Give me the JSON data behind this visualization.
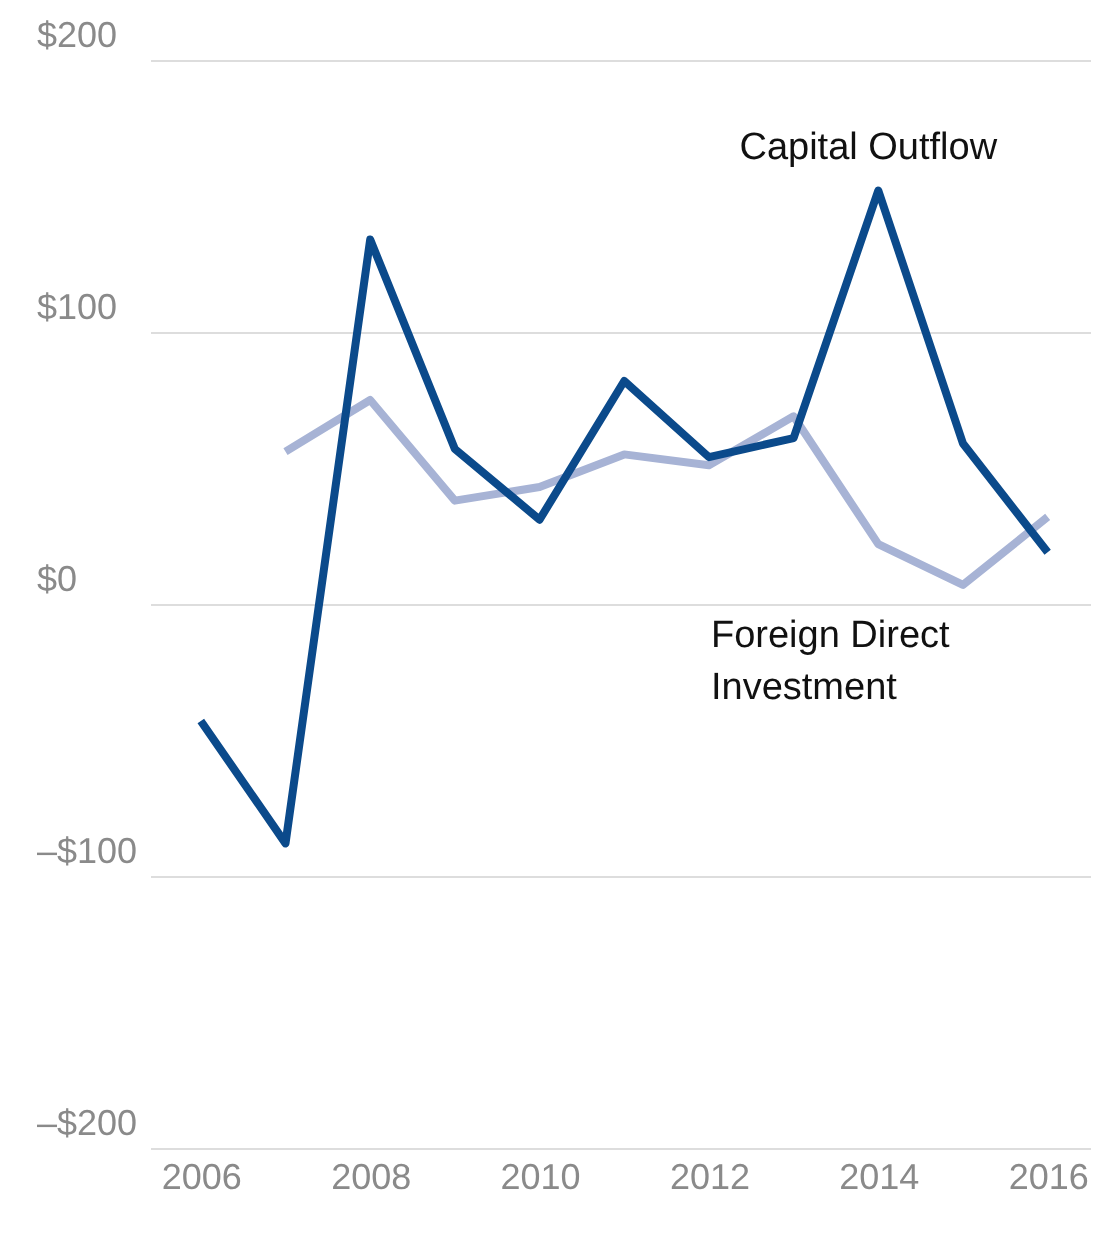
{
  "chart_data": {
    "type": "line",
    "x": [
      2006,
      2007,
      2008,
      2009,
      2010,
      2011,
      2012,
      2013,
      2014,
      2015,
      2016
    ],
    "series": [
      {
        "name": "Capital Outflow",
        "color": "#0b4a8b",
        "values": [
          -43,
          -88,
          134,
          57,
          31,
          82,
          54,
          61,
          152,
          59,
          19
        ]
      },
      {
        "name": "Foreign Direct Investment",
        "color": "#a7b3d5",
        "values": [
          null,
          56,
          75,
          38,
          43,
          55,
          51,
          69,
          22,
          7,
          32
        ]
      }
    ],
    "xlim": [
      2005.4,
      2016.5
    ],
    "xticks": [
      2006,
      2008,
      2010,
      2012,
      2014,
      2016
    ],
    "ylim": [
      -200,
      200
    ],
    "yticks": [
      {
        "value": 200,
        "label": "$200"
      },
      {
        "value": 100,
        "label": "$100"
      },
      {
        "value": 0,
        "label": "$0"
      },
      {
        "value": -100,
        "label": "–$100"
      },
      {
        "value": -200,
        "label": "–$200"
      }
    ],
    "grid": "y",
    "legend": false,
    "marker": "none",
    "line_style": "solid"
  }
}
